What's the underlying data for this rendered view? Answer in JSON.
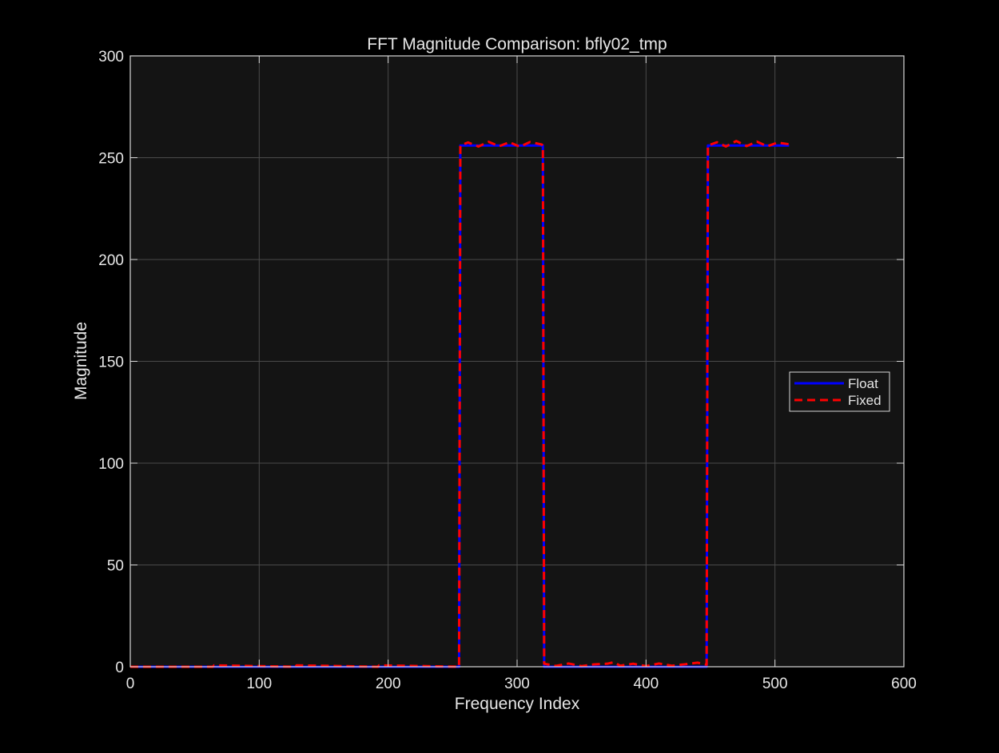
{
  "chart_data": {
    "type": "line",
    "title": "FFT Magnitude Comparison: bfly02_tmp",
    "xlabel": "Frequency Index",
    "ylabel": "Magnitude",
    "xlim": [
      0,
      600
    ],
    "ylim": [
      0,
      300
    ],
    "x_ticks": [
      0,
      100,
      200,
      300,
      400,
      500,
      600
    ],
    "y_ticks": [
      0,
      50,
      100,
      150,
      200,
      250,
      300
    ],
    "x_tick_labels": [
      "0",
      "100",
      "200",
      "300",
      "400",
      "500",
      "600"
    ],
    "y_tick_labels": [
      "0",
      "50",
      "100",
      "150",
      "200",
      "250",
      "300"
    ],
    "grid": true,
    "legend_position": "right",
    "background_color": "#000000",
    "axes_color": "#141414",
    "series": [
      {
        "name": "Float",
        "color": "#0000ff",
        "style": "solid",
        "x": [
          0,
          255,
          256,
          320,
          321,
          447,
          448,
          511
        ],
        "y": [
          0,
          0,
          256,
          256,
          0,
          0,
          256,
          256
        ]
      },
      {
        "name": "Fixed",
        "color": "#ff0000",
        "style": "dashed",
        "x": [
          0,
          64,
          65,
          128,
          129,
          192,
          193,
          255,
          256,
          262,
          270,
          278,
          286,
          294,
          302,
          310,
          319,
          320,
          321,
          330,
          340,
          350,
          360,
          370,
          375,
          380,
          390,
          400,
          410,
          420,
          430,
          440,
          447,
          448,
          455,
          462,
          470,
          478,
          486,
          494,
          502,
          511
        ],
        "y": [
          0,
          0,
          0.7,
          0,
          0.7,
          0,
          0.7,
          0,
          256,
          257.5,
          255.5,
          257.8,
          255.6,
          257.6,
          255.4,
          257.7,
          256.5,
          256,
          1.5,
          0.4,
          1.6,
          0.3,
          1.2,
          1.5,
          2.2,
          0.5,
          1.5,
          0.3,
          1.6,
          0.5,
          1.2,
          2.0,
          1.0,
          256,
          257.6,
          255.5,
          258.2,
          255.7,
          257.9,
          255.6,
          257.4,
          256.6
        ]
      }
    ]
  }
}
